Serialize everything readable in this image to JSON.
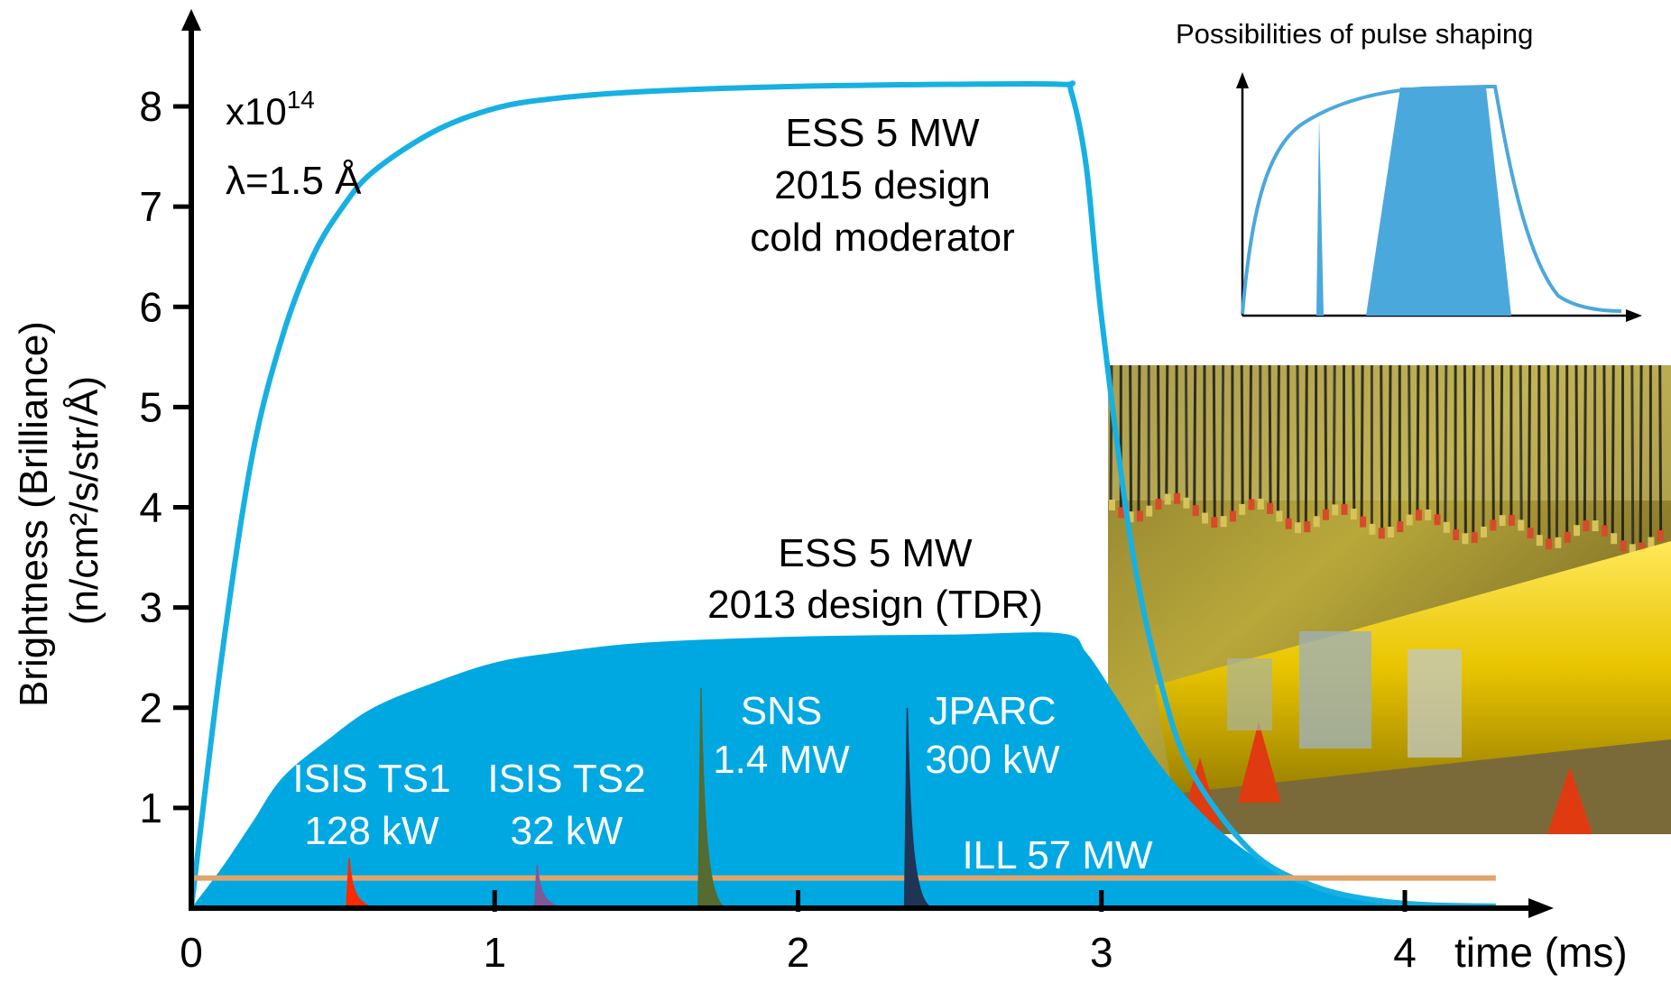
{
  "chart_data": {
    "type": "area",
    "title": "",
    "xlabel": "time (ms)",
    "ylabel_line1": "Brightness (Brilliance)",
    "ylabel_line2": "(n/cm²/s/str/Å)",
    "y_multiplier_base": "x10",
    "y_multiplier_exp": "14",
    "wavelength_label": "λ=1.5 Å",
    "xlim": [
      0,
      4.4
    ],
    "ylim": [
      0,
      8.7
    ],
    "x_ticks": [
      0,
      1,
      2,
      3,
      4
    ],
    "x_tick_labels": [
      "0",
      "1",
      "2",
      "3",
      "4"
    ],
    "y_ticks": [
      1,
      2,
      3,
      4,
      5,
      6,
      7,
      8
    ],
    "y_tick_labels": [
      "1",
      "2",
      "3",
      "4",
      "5",
      "6",
      "7",
      "8"
    ],
    "grid": false,
    "series": [
      {
        "name": "ESS 5 MW 2015 design cold moderator",
        "label_lines": [
          "ESS 5 MW",
          "2015 design",
          "cold moderator"
        ],
        "color": "#17b0e3",
        "style": "line",
        "x": [
          0,
          0.1,
          0.2,
          0.3,
          0.4,
          0.5,
          0.6,
          0.8,
          1.0,
          1.2,
          1.5,
          2.0,
          2.5,
          2.87,
          2.9,
          2.95,
          3.0,
          3.1,
          3.2,
          3.3,
          3.5,
          3.7,
          3.9,
          4.1,
          4.3
        ],
        "values": [
          0,
          2.5,
          4.5,
          5.7,
          6.5,
          7.0,
          7.35,
          7.75,
          7.98,
          8.08,
          8.15,
          8.2,
          8.22,
          8.22,
          8.15,
          7.4,
          5.9,
          3.6,
          2.2,
          1.35,
          0.55,
          0.22,
          0.08,
          0.03,
          0.02
        ]
      },
      {
        "name": "ESS 5 MW 2013 design (TDR)",
        "label_lines": [
          "ESS 5 MW",
          "2013 design (TDR)"
        ],
        "color": "#00a8e2",
        "style": "area",
        "x": [
          0,
          0.1,
          0.2,
          0.3,
          0.45,
          0.6,
          0.8,
          1.0,
          1.2,
          1.5,
          2.0,
          2.5,
          2.87,
          2.95,
          3.05,
          3.2,
          3.4,
          3.6,
          3.8,
          4.0,
          4.2,
          4.3
        ],
        "values": [
          0,
          0.4,
          0.85,
          1.3,
          1.68,
          2.0,
          2.25,
          2.45,
          2.55,
          2.65,
          2.71,
          2.73,
          2.74,
          2.55,
          2.1,
          1.4,
          0.75,
          0.35,
          0.15,
          0.06,
          0.02,
          0.01
        ]
      },
      {
        "name": "ILL 57 MW",
        "label_lines": [
          "ILL 57 MW"
        ],
        "color": "#e0a46c",
        "style": "line",
        "x": [
          0,
          4.3
        ],
        "values": [
          0.3,
          0.3
        ]
      },
      {
        "name": "ISIS TS1 128 kW",
        "label_lines": [
          "ISIS TS1",
          "128 kW"
        ],
        "color": "#ff2a00",
        "style": "spike",
        "peak_x": 0.52,
        "peak_value": 0.5
      },
      {
        "name": "ISIS TS2 32 kW",
        "label_lines": [
          "ISIS TS2",
          "32 kW"
        ],
        "color": "#7e5a9b",
        "style": "spike",
        "peak_x": 1.14,
        "peak_value": 0.43
      },
      {
        "name": "SNS 1.4 MW",
        "label_lines": [
          "SNS",
          "1.4 MW"
        ],
        "color": "#556b2f",
        "style": "spike",
        "peak_x": 1.68,
        "peak_value": 2.2
      },
      {
        "name": "JPARC 300 kW",
        "label_lines": [
          "JPARC",
          "300 kW"
        ],
        "color": "#1f3556",
        "style": "spike",
        "peak_x": 2.36,
        "peak_value": 2.0
      }
    ]
  },
  "inset": {
    "title": "Possibilities of pulse shaping",
    "color": "#4ba8dc"
  },
  "photo": {
    "description_icon": "accelerator-photo-icon"
  }
}
